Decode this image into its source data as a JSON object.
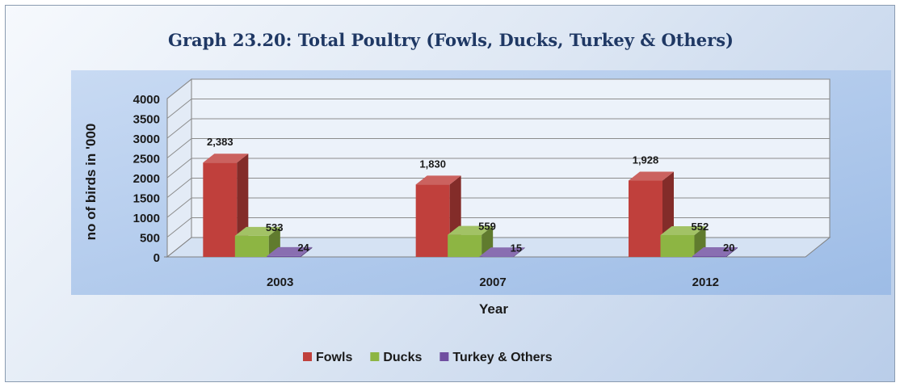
{
  "chart_data": {
    "type": "bar",
    "title": "Graph 23.20: Total Poultry (Fowls, Ducks, Turkey & Others)",
    "xlabel": "Year",
    "ylabel": "no of birds in '000",
    "categories": [
      "2003",
      "2007",
      "2012"
    ],
    "series": [
      {
        "name": "Fowls",
        "values": [
          2383,
          1830,
          1928
        ],
        "labels": [
          "2,383",
          "1,830",
          "1,928"
        ],
        "color": "#c0403c"
      },
      {
        "name": "Ducks",
        "values": [
          533,
          559,
          552
        ],
        "labels": [
          "533",
          "559",
          "552"
        ],
        "color": "#8db543"
      },
      {
        "name": "Turkey &  Others",
        "values": [
          24,
          15,
          20
        ],
        "labels": [
          "24",
          "15",
          "20"
        ],
        "color": "#6f4ea0"
      }
    ],
    "ylim": [
      0,
      4000
    ],
    "yticks": [
      0,
      500,
      1000,
      1500,
      2000,
      2500,
      3000,
      3500,
      4000
    ],
    "grid": true,
    "legend": "bottom",
    "style": "3d-clustered-column",
    "colors": {
      "title": "#1f3864",
      "plot_background": "#a9c4ea",
      "gridline": "#7f7f7f",
      "text": "#1a1a1a"
    }
  }
}
